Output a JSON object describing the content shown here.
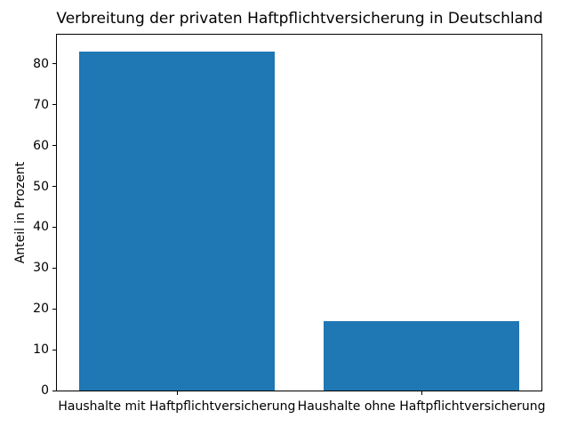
{
  "chart_data": {
    "type": "bar",
    "title": "Verbreitung der privaten Haftpflichtversicherung in Deutschland",
    "ylabel": "Anteil in Prozent",
    "categories": [
      "Haushalte mit Haftpflichtversicherung",
      "Haushalte ohne Haftpflichtversicherung"
    ],
    "values": [
      83,
      17
    ],
    "yticks": [
      0,
      10,
      20,
      30,
      40,
      50,
      60,
      70,
      80
    ],
    "ylim": [
      0,
      87.15
    ],
    "bar_color": "#1f77b4",
    "bar_width_fraction": 0.8,
    "grid": false,
    "legend": false
  }
}
